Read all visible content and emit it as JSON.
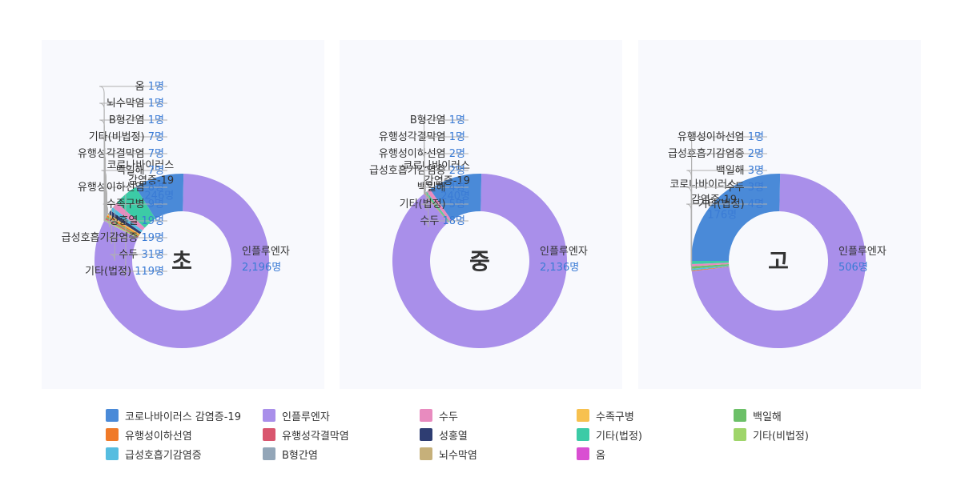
{
  "categories": [
    "코로나바이러스 감염증-19",
    "인플루엔자",
    "수두",
    "수족구병",
    "백일해",
    "유행성이하선염",
    "유행성각결막염",
    "성홍열",
    "기타(법정)",
    "기타(비법정)",
    "급성호흡기감염증",
    "B형간염",
    "뇌수막염",
    "옴"
  ],
  "colors": {
    "코로나바이러스 감염증-19": "#4a8ad8",
    "인플루엔자": "#a98fea",
    "수두": "#e88bbf",
    "수족구병": "#f7c14f",
    "백일해": "#6cc068",
    "유행성이하선염": "#f07a28",
    "유행성각결막염": "#d9566e",
    "성홍열": "#2e3d72",
    "기타(법정)": "#3ccba6",
    "기타(비법정)": "#9fd56a",
    "급성호흡기감염증": "#56bde0",
    "B형간염": "#93a6b8",
    "뇌수막염": "#c6b07a",
    "옴": "#d94fd2"
  },
  "unit": "명",
  "chart_data": [
    {
      "type": "pie",
      "center_label": "초",
      "slices": [
        {
          "category": "인플루엔자",
          "value": 2196,
          "label": "인플루엔자",
          "value_text": "2,196명"
        },
        {
          "category": "코로나바이러스 감염증-19",
          "value": 246,
          "label": "코로나바이러스 감염증-19",
          "value_text": "246명"
        },
        {
          "category": "기타(법정)",
          "value": 119,
          "label": "기타(법정)",
          "value_text": "119명"
        },
        {
          "category": "수두",
          "value": 31,
          "label": "수두",
          "value_text": "31명"
        },
        {
          "category": "급성호흡기감염증",
          "value": 19,
          "label": "급성호흡기감염증",
          "value_text": "19명"
        },
        {
          "category": "성홍열",
          "value": 19,
          "label": "성홍열",
          "value_text": "19명"
        },
        {
          "category": "수족구병",
          "value": 9,
          "label": "수족구병",
          "value_text": "9명"
        },
        {
          "category": "유행성이하선염",
          "value": 8,
          "label": "유행성이하선염",
          "value_text": "8명"
        },
        {
          "category": "백일해",
          "value": 7,
          "label": "백일해",
          "value_text": "7명"
        },
        {
          "category": "유행성각결막염",
          "value": 7,
          "label": "유행성각결막염",
          "value_text": "7명"
        },
        {
          "category": "기타(비법정)",
          "value": 7,
          "label": "기타(비법정)",
          "value_text": "7명"
        },
        {
          "category": "B형간염",
          "value": 1,
          "label": "B형간염",
          "value_text": "1명"
        },
        {
          "category": "뇌수막염",
          "value": 1,
          "label": "뇌수막염",
          "value_text": "1명"
        },
        {
          "category": "옴",
          "value": 1,
          "label": "옴",
          "value_text": "1명"
        }
      ]
    },
    {
      "type": "pie",
      "center_label": "중",
      "slices": [
        {
          "category": "인플루엔자",
          "value": 2136,
          "label": "인플루엔자",
          "value_text": "2,136명"
        },
        {
          "category": "코로나바이러스 감염증-19",
          "value": 240,
          "label": "코로나바이러스 감염증-19",
          "value_text": "240명"
        },
        {
          "category": "수두",
          "value": 18,
          "label": "수두",
          "value_text": "18명"
        },
        {
          "category": "기타(법정)",
          "value": 5,
          "label": "기타(법정)",
          "value_text": "5명"
        },
        {
          "category": "백일해",
          "value": 4,
          "label": "백일해",
          "value_text": "4명"
        },
        {
          "category": "급성호흡기감염증",
          "value": 2,
          "label": "급성호흡기감염증",
          "value_text": "2명"
        },
        {
          "category": "유행성이하선염",
          "value": 2,
          "label": "유행성이하선염",
          "value_text": "2명"
        },
        {
          "category": "유행성각결막염",
          "value": 1,
          "label": "유행성각결막염",
          "value_text": "1명"
        },
        {
          "category": "B형간염",
          "value": 1,
          "label": "B형간염",
          "value_text": "1명"
        }
      ]
    },
    {
      "type": "pie",
      "center_label": "고",
      "slices": [
        {
          "category": "인플루엔자",
          "value": 506,
          "label": "인플루엔자",
          "value_text": "506명"
        },
        {
          "category": "코로나바이러스 감염증-19",
          "value": 176,
          "label": "코로나바이러스 감염증-19",
          "value_text": "176명"
        },
        {
          "category": "기타(법정)",
          "value": 4,
          "label": "기타(법정)",
          "value_text": "4명"
        },
        {
          "category": "수두",
          "value": 3,
          "label": "수두",
          "value_text": "3명"
        },
        {
          "category": "백일해",
          "value": 3,
          "label": "백일해",
          "value_text": "3명"
        },
        {
          "category": "급성호흡기감염증",
          "value": 2,
          "label": "급성호흡기감염증",
          "value_text": "2명"
        },
        {
          "category": "유행성이하선염",
          "value": 1,
          "label": "유행성이하선염",
          "value_text": "1명"
        }
      ]
    }
  ],
  "legend": {
    "placement": "bottom",
    "items": [
      "코로나바이러스 감염증-19",
      "인플루엔자",
      "수두",
      "수족구병",
      "백일해",
      "유행성이하선염",
      "유행성각결막염",
      "성홍열",
      "기타(법정)",
      "기타(비법정)",
      "급성호흡기감염증",
      "B형간염",
      "뇌수막염",
      "옴"
    ]
  }
}
